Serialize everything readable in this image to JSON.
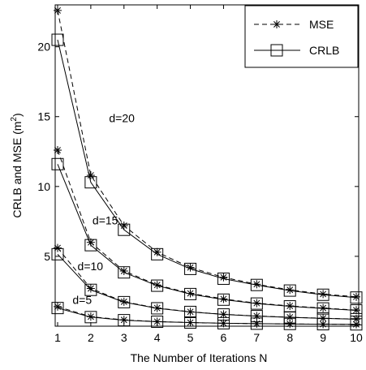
{
  "chart_data": {
    "type": "line",
    "title": "",
    "xlabel": "The Number of Iterations N",
    "ylabel_main": "CRLB and MSE (m",
    "ylabel_sup": "2",
    "ylabel_close": ")",
    "xlim": [
      1,
      10
    ],
    "ylim": [
      0,
      23
    ],
    "x_ticks": [
      1,
      2,
      3,
      4,
      5,
      6,
      7,
      8,
      9,
      10
    ],
    "y_ticks": [
      5,
      10,
      15,
      20
    ],
    "grid": false,
    "legend_position": "top-right",
    "x": [
      1,
      2,
      3,
      4,
      5,
      6,
      7,
      8,
      9,
      10
    ],
    "series": [
      {
        "name": "MSE",
        "style": "dashed-star",
        "group": "d=20",
        "values": [
          22.6,
          10.8,
          7.2,
          5.3,
          4.2,
          3.5,
          3.0,
          2.6,
          2.3,
          2.1
        ]
      },
      {
        "name": "CRLB",
        "style": "solid-square",
        "group": "d=20",
        "values": [
          20.5,
          10.3,
          6.9,
          5.15,
          4.1,
          3.4,
          2.95,
          2.55,
          2.25,
          2.05
        ]
      },
      {
        "name": "MSE",
        "style": "dashed-star",
        "group": "d=15",
        "values": [
          12.6,
          6.0,
          3.95,
          2.95,
          2.35,
          1.95,
          1.65,
          1.45,
          1.3,
          1.15
        ]
      },
      {
        "name": "CRLB",
        "style": "solid-square",
        "group": "d=15",
        "values": [
          11.6,
          5.8,
          3.85,
          2.9,
          2.3,
          1.9,
          1.62,
          1.42,
          1.27,
          1.13
        ]
      },
      {
        "name": "MSE",
        "style": "dashed-star",
        "group": "d=10",
        "values": [
          5.6,
          2.7,
          1.75,
          1.3,
          1.03,
          0.85,
          0.73,
          0.64,
          0.57,
          0.51
        ]
      },
      {
        "name": "CRLB",
        "style": "solid-square",
        "group": "d=10",
        "values": [
          5.15,
          2.6,
          1.72,
          1.28,
          1.02,
          0.84,
          0.72,
          0.63,
          0.56,
          0.5
        ]
      },
      {
        "name": "MSE",
        "style": "dashed-star",
        "group": "d=5",
        "values": [
          1.4,
          0.68,
          0.45,
          0.33,
          0.26,
          0.21,
          0.18,
          0.16,
          0.14,
          0.13
        ]
      },
      {
        "name": "CRLB",
        "style": "solid-square",
        "group": "d=5",
        "values": [
          1.3,
          0.65,
          0.43,
          0.32,
          0.26,
          0.21,
          0.18,
          0.16,
          0.14,
          0.13
        ]
      }
    ],
    "annotations": [
      {
        "text": "d=20",
        "x": 2.55,
        "y": 14.6
      },
      {
        "text": "d=15",
        "x": 2.05,
        "y": 7.3
      },
      {
        "text": "d=10",
        "x": 1.6,
        "y": 4.0
      },
      {
        "text": "d=5",
        "x": 1.45,
        "y": 1.6
      }
    ],
    "legend": [
      {
        "label": "MSE",
        "style": "dashed-star"
      },
      {
        "label": "CRLB",
        "style": "solid-square"
      }
    ]
  }
}
